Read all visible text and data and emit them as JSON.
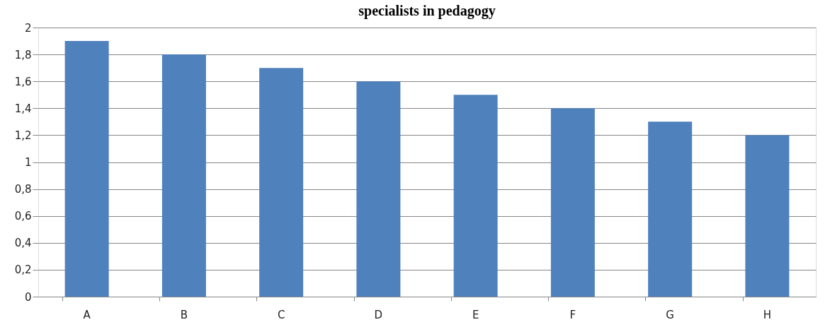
{
  "chart_data": {
    "type": "bar",
    "title": "specialists in pedagogy",
    "categories": [
      "A",
      "B",
      "C",
      "D",
      "E",
      "F",
      "G",
      "H"
    ],
    "values": [
      1.9,
      1.8,
      1.7,
      1.6,
      1.5,
      1.4,
      1.3,
      1.2
    ],
    "color": "#4f81bd",
    "ylim": [
      0,
      2
    ],
    "yticks": [
      0,
      {
        "value": 0.2,
        "label": "0,2"
      },
      {
        "value": 0.4,
        "label": "0,4"
      },
      {
        "value": 0.6,
        "label": "0,6"
      },
      {
        "value": 0.8,
        "label": "0,8"
      },
      1,
      {
        "value": 1.2,
        "label": "1,2"
      },
      {
        "value": 1.4,
        "label": "1,4"
      },
      {
        "value": 1.6,
        "label": "1,6"
      },
      {
        "value": 1.8,
        "label": "1,8"
      },
      2
    ],
    "grid": "y"
  }
}
